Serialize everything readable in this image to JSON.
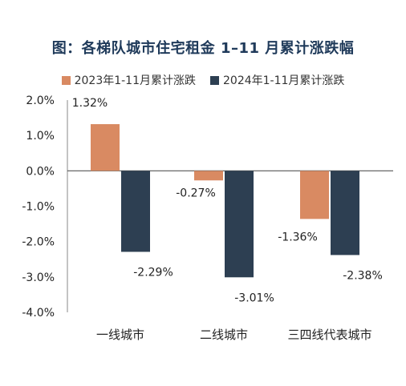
{
  "chart_data": {
    "type": "bar",
    "title": "图：各梯队城市住宅租金 1–11 月累计涨跌幅",
    "categories": [
      "一线城市",
      "二线城市",
      "三四线代表城市"
    ],
    "series": [
      {
        "name": "2023年1-11月累计涨跌",
        "color": "#d98a62",
        "values": [
          1.32,
          -0.27,
          -1.36
        ],
        "labels": [
          "1.32%",
          "-0.27%",
          "-1.36%"
        ]
      },
      {
        "name": "2024年1-11月累计涨跌",
        "color": "#2d3f52",
        "values": [
          -2.29,
          -3.01,
          -2.38
        ],
        "labels": [
          "-2.29%",
          "-3.01%",
          "-2.38%"
        ]
      }
    ],
    "ylim": [
      -4.0,
      2.0
    ],
    "yticks": [
      2.0,
      1.0,
      0.0,
      -1.0,
      -2.0,
      -3.0,
      -4.0
    ],
    "ytick_labels": [
      "2.0%",
      "1.0%",
      "0.0%",
      "-1.0%",
      "-2.0%",
      "-3.0%",
      "-4.0%"
    ],
    "legend_position": "top",
    "grid": false,
    "xlabel": "",
    "ylabel": ""
  }
}
